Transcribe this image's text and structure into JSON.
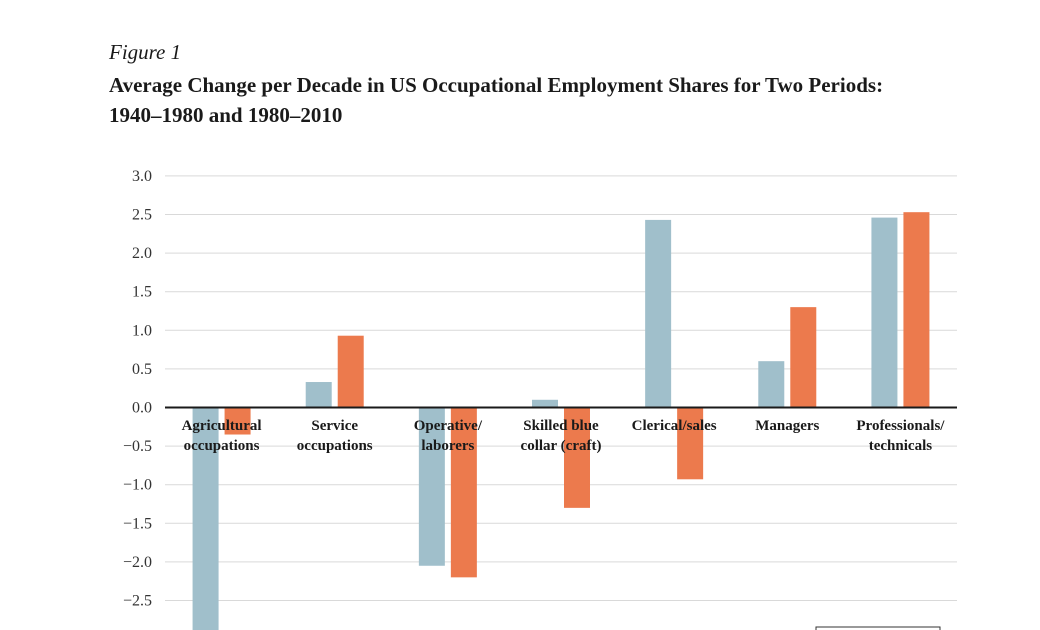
{
  "figure": {
    "label": "Figure 1",
    "title": "Average Change per Decade in US Occupational Employment Shares for Two Periods: 1940–1980 and 1980–2010"
  },
  "colors": {
    "series_1": "#a0bfcb",
    "series_2": "#ec7a4d",
    "grid": "#d9d9d9",
    "axis": "#1a1a1a"
  },
  "chart_data": {
    "type": "bar",
    "title": "Average Change per Decade in US Occupational Employment Shares for Two Periods: 1940–1980 and 1980–2010",
    "xlabel": "",
    "ylabel": "",
    "categories": [
      [
        "Agricultural",
        "occupations"
      ],
      [
        "Service",
        "occupations"
      ],
      [
        "Operative/",
        "laborers"
      ],
      [
        "Skilled blue",
        "collar (craft)"
      ],
      [
        "Clerical/sales"
      ],
      [
        "Managers"
      ],
      [
        "Professionals/",
        "technicals"
      ]
    ],
    "series": [
      {
        "values": [
          -3.1,
          0.33,
          -2.05,
          0.1,
          2.43,
          0.6,
          2.46
        ]
      },
      {
        "values": [
          -0.35,
          0.93,
          -2.2,
          -1.3,
          -0.93,
          1.3,
          2.53
        ]
      }
    ],
    "yticks": [
      "3.0",
      "2.5",
      "2.0",
      "1.5",
      "1.0",
      "0.5",
      "0.0",
      "−0.5",
      "−1.0",
      "−1.5",
      "−2.0",
      "−2.5"
    ],
    "ylim": [
      -2.9,
      3.0
    ],
    "grid": true
  }
}
